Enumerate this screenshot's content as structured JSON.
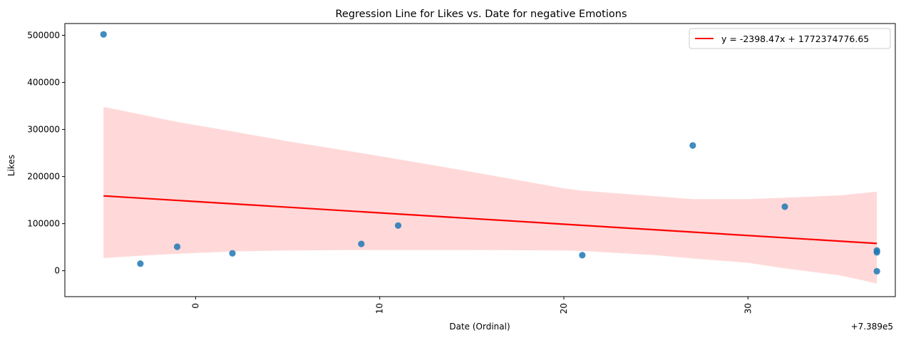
{
  "chart_data": {
    "type": "scatter",
    "title": "Regression Line for Likes vs. Date for negative Emotions",
    "xlabel": "Date (Ordinal)",
    "ylabel": "Likes",
    "x_offset_label": "+7.389e5",
    "xlim": [
      -7.1,
      38.0
    ],
    "ylim": [
      -55000,
      525000
    ],
    "x_ticks": [
      0,
      10,
      20,
      30
    ],
    "x_tick_labels": [
      "0",
      "10",
      "20",
      "30"
    ],
    "y_ticks": [
      0,
      100000,
      200000,
      300000,
      400000,
      500000
    ],
    "y_tick_labels": [
      "0",
      "100000",
      "200000",
      "300000",
      "400000",
      "500000"
    ],
    "points": [
      {
        "x": -5,
        "y": 502000
      },
      {
        "x": -3,
        "y": 15000
      },
      {
        "x": -1,
        "y": 51000
      },
      {
        "x": 2,
        "y": 37000
      },
      {
        "x": 9,
        "y": 57000
      },
      {
        "x": 11,
        "y": 96000
      },
      {
        "x": 21,
        "y": 33000
      },
      {
        "x": 27,
        "y": 266000
      },
      {
        "x": 32,
        "y": 136000
      },
      {
        "x": 37,
        "y": 43000
      },
      {
        "x": 37,
        "y": 39000
      },
      {
        "x": 37,
        "y": -1000
      }
    ],
    "regression_line": {
      "x": [
        -5,
        37
      ],
      "y": [
        159000,
        58000
      ]
    },
    "confidence_band": {
      "x": [
        -5,
        -3,
        -1,
        2,
        5,
        9,
        11,
        15,
        20,
        21,
        25,
        27,
        30,
        32,
        35,
        37
      ],
      "upper": [
        348000,
        332000,
        316000,
        296000,
        275000,
        250000,
        237000,
        210000,
        175000,
        170000,
        158000,
        152000,
        152000,
        155000,
        160000,
        168000
      ],
      "lower": [
        27000,
        32000,
        36000,
        41000,
        43000,
        44000,
        44000,
        44000,
        43000,
        42000,
        33000,
        26000,
        17000,
        5000,
        -10000,
        -27000
      ]
    },
    "legend": {
      "label": "y = -2398.47x + 1772374776.65",
      "position": "upper-right"
    },
    "colors": {
      "points": "#1f77b4",
      "line": "#ff0000",
      "band": "#ffb3b3"
    },
    "grid": false
  }
}
